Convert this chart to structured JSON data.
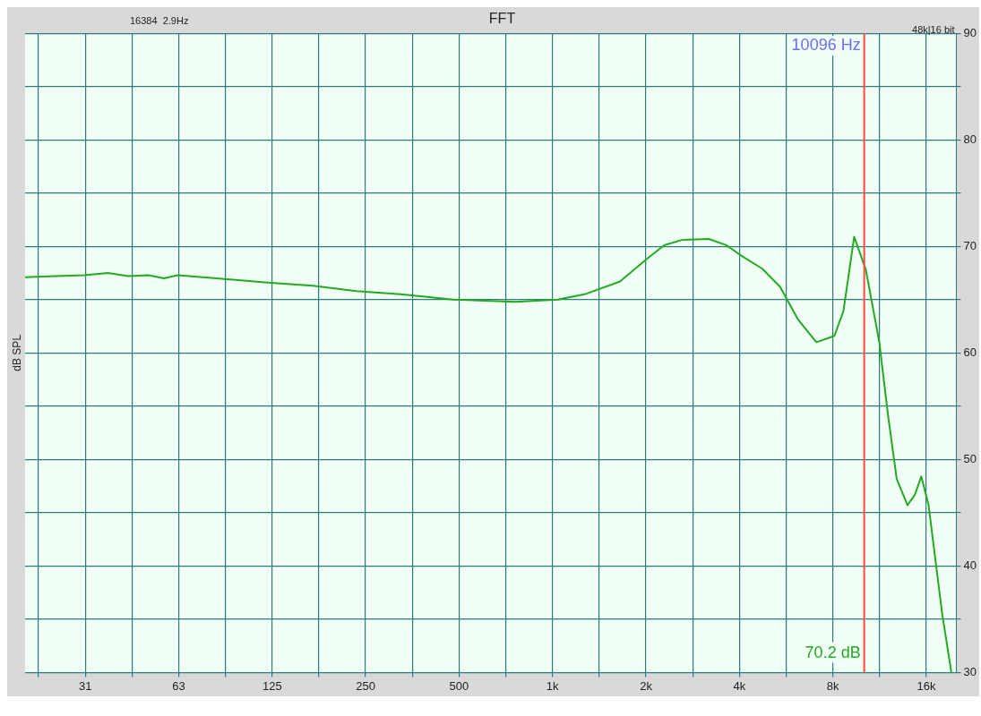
{
  "chart_data": {
    "type": "line",
    "title": "FFT",
    "ylabel": "dB SPL",
    "log": "x",
    "grid": true,
    "legend": false,
    "marker": "none",
    "line_style": "solid",
    "annotations": [
      "16384  2.9Hz",
      "48k|16 bit",
      "70.2 dB"
    ],
    "xlim": [
      20,
      20000
    ],
    "xticks": [
      {
        "value": 22.1,
        "label": null
      },
      {
        "value": 31.25,
        "label": "31"
      },
      {
        "value": 44.2,
        "label": null
      },
      {
        "value": 62.5,
        "label": "63"
      },
      {
        "value": 88.4,
        "label": null
      },
      {
        "value": 125,
        "label": "125"
      },
      {
        "value": 176.8,
        "label": null
      },
      {
        "value": 250,
        "label": "250"
      },
      {
        "value": 353.6,
        "label": null
      },
      {
        "value": 500,
        "label": "500"
      },
      {
        "value": 707.1,
        "label": null
      },
      {
        "value": 1000,
        "label": "1k"
      },
      {
        "value": 1414,
        "label": null
      },
      {
        "value": 2000,
        "label": "2k"
      },
      {
        "value": 2828,
        "label": null
      },
      {
        "value": 4000,
        "label": "4k"
      },
      {
        "value": 5657,
        "label": null
      },
      {
        "value": 8000,
        "label": "8k"
      },
      {
        "value": 11314,
        "label": null
      },
      {
        "value": 16000,
        "label": "16k"
      }
    ],
    "ylim": [
      30,
      90
    ],
    "yticks": [
      30,
      {
        "value": 35,
        "label": null
      },
      40,
      {
        "value": 45,
        "label": null
      },
      50,
      {
        "value": 55,
        "label": null
      },
      60,
      {
        "value": 65,
        "label": null
      },
      70,
      {
        "value": 75,
        "label": null
      },
      80,
      {
        "value": 85,
        "label": null
      },
      90
    ],
    "ref_lines": [
      {
        "axis": "x",
        "value": 10096,
        "label": "10096 Hz",
        "color": "#ff4a3d"
      }
    ],
    "series": [
      {
        "color": "#22aa22",
        "x": [
          20,
          25,
          31,
          37,
          43,
          50,
          56,
          62,
          83,
          121,
          169,
          233,
          324,
          480,
          757,
          1040,
          1270,
          1650,
          2010,
          2290,
          2610,
          3190,
          3640,
          4020,
          4740,
          5410,
          6190,
          7080,
          8090,
          8650,
          9370,
          10220,
          11290,
          12040,
          12840,
          13920,
          14700,
          15420,
          16270,
          18000,
          19270
        ],
        "values": [
          67.1,
          67.2,
          67.3,
          67.5,
          67.2,
          67.3,
          67.0,
          67.3,
          67.0,
          66.6,
          66.3,
          65.8,
          65.5,
          65.0,
          64.8,
          65.0,
          65.5,
          66.7,
          68.8,
          70.1,
          70.6,
          70.7,
          70.1,
          69.2,
          67.9,
          66.2,
          63.1,
          61.0,
          61.6,
          63.9,
          70.9,
          67.8,
          61.0,
          54.2,
          48.2,
          45.7,
          46.7,
          48.4,
          45.7,
          35.5,
          30.0
        ]
      }
    ]
  }
}
